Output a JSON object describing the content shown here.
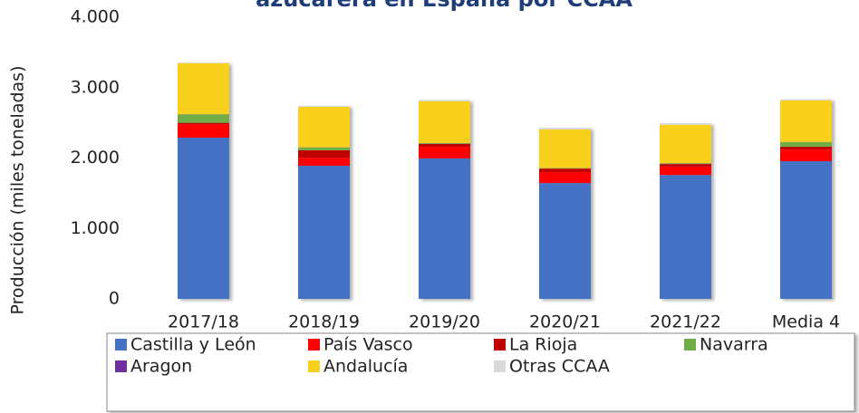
{
  "chart_data": {
    "type": "bar",
    "stacked": true,
    "title": "azucarera en España por CCAA",
    "y_label": "Producción (miles toneladas)",
    "categories": [
      "2017/18",
      "2018/19",
      "2019/20",
      "2020/21",
      "2021/22",
      "Media 4"
    ],
    "series": [
      {
        "name": "Castilla y León",
        "color": "#4472c4",
        "values": [
          2290,
          1890,
          1995,
          1645,
          1760,
          1955
        ]
      },
      {
        "name": "País Vasco",
        "color": "#ff0000",
        "values": [
          190,
          115,
          165,
          155,
          120,
          165
        ]
      },
      {
        "name": "La Rioja",
        "color": "#c00000",
        "values": [
          20,
          105,
          40,
          50,
          35,
          40
        ]
      },
      {
        "name": "Navarra",
        "color": "#70ad47",
        "values": [
          120,
          40,
          10,
          5,
          10,
          65
        ]
      },
      {
        "name": "Aragon",
        "color": "#7030a0",
        "values": [
          2,
          2,
          2,
          2,
          2,
          2
        ]
      },
      {
        "name": "Andalucía",
        "color": "#f9d01c",
        "values": [
          725,
          575,
          595,
          550,
          545,
          590
        ]
      },
      {
        "name": "Otras CCAA",
        "color": "#d9d9d9",
        "values": [
          10,
          15,
          20,
          25,
          25,
          20
        ]
      }
    ],
    "ylim": [
      0,
      4000
    ],
    "yticks": [
      0,
      {
        "value": 1000,
        "label": "1.000"
      },
      {
        "value": 2000,
        "label": "2.000"
      },
      {
        "value": 3000,
        "label": "3.000"
      },
      {
        "value": 4000,
        "label": "4.000"
      }
    ],
    "grid": false,
    "legend": "bottom"
  }
}
